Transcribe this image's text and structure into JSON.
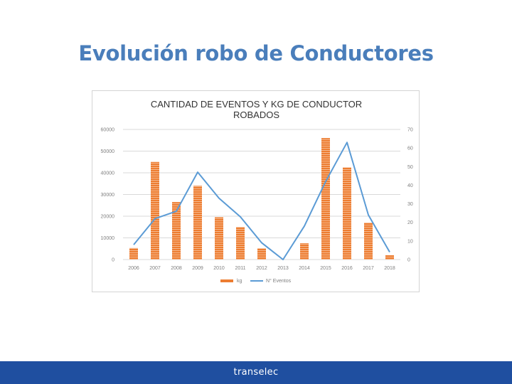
{
  "slide": {
    "title": "Evolución robo de Conductores",
    "title_color": "#4a7ebb"
  },
  "footer": {
    "logo_text": "transelec",
    "bg_color": "#1f4fa0"
  },
  "chart_data": {
    "type": "bar",
    "title_line1": "CANTIDAD DE EVENTOS Y KG  DE CONDUCTOR",
    "title_line2": "ROBADOS",
    "categories": [
      "2006",
      "2007",
      "2008",
      "2009",
      "2010",
      "2011",
      "2012",
      "2013",
      "2014",
      "2015",
      "2016",
      "2017",
      "2018"
    ],
    "series": [
      {
        "name": "kg",
        "type": "bar",
        "axis": "left",
        "color": "#ed7d31",
        "values": [
          5300,
          45000,
          26500,
          34000,
          19500,
          15000,
          5200,
          0,
          7500,
          56000,
          42500,
          17000,
          2000
        ]
      },
      {
        "name": "N° Eventos",
        "type": "line",
        "axis": "right",
        "color": "#5b9bd5",
        "values": [
          8,
          22,
          26,
          47,
          33,
          23,
          9,
          0,
          18,
          42,
          63,
          24,
          4
        ]
      }
    ],
    "left_axis": {
      "ylim": [
        0,
        60000
      ],
      "ticks": [
        "0",
        "10000",
        "20000",
        "30000",
        "40000",
        "50000",
        "60000"
      ]
    },
    "right_axis": {
      "ylim": [
        0,
        70
      ],
      "ticks": [
        "0",
        "10",
        "20",
        "30",
        "40",
        "50",
        "60",
        "70"
      ]
    },
    "grid": true,
    "legend_position": "bottom"
  }
}
